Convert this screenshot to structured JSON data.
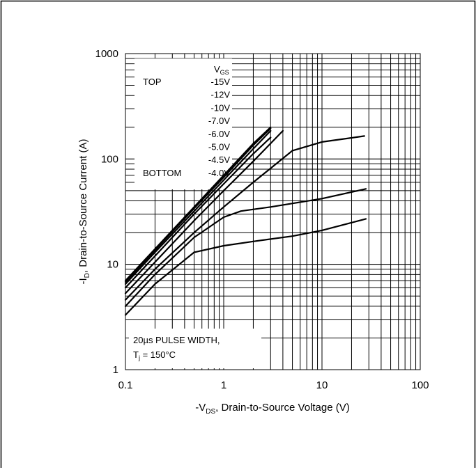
{
  "chart_data": {
    "type": "line",
    "x_scale": "log",
    "y_scale": "log",
    "xlim": [
      0.1,
      100
    ],
    "ylim": [
      1,
      1000
    ],
    "grid": true,
    "xlabel": {
      "prefix": "-V",
      "subscript": "DS",
      "suffix": ", Drain-to-Source Voltage (V)"
    },
    "ylabel": {
      "prefix": "-I",
      "subscript": "D",
      "suffix": ", Drain-to-Source Current (A)"
    },
    "x_ticks": [
      {
        "value": 0.1,
        "label": "0.1"
      },
      {
        "value": 1,
        "label": "1"
      },
      {
        "value": 10,
        "label": "10"
      },
      {
        "value": 100,
        "label": "100"
      }
    ],
    "y_ticks": [
      {
        "value": 1,
        "label": "1"
      },
      {
        "value": 10,
        "label": "10"
      },
      {
        "value": 100,
        "label": "100"
      },
      {
        "value": 1000,
        "label": "1000"
      }
    ],
    "legend": {
      "placement": "top-left",
      "header": {
        "prefix": "V",
        "subscript": "GS"
      },
      "top_label": "TOP",
      "bottom_label": "BOTTOM",
      "entries": [
        "-15V",
        "-12V",
        "-10V",
        "-7.0V",
        "-6.0V",
        "-5.0V",
        "-4.5V",
        "-4.0V"
      ]
    },
    "annotation": {
      "line1": "20µs PULSE WIDTH,",
      "line2_prefix": "T",
      "line2_subscript": "j",
      "line2_suffix": " = 150°C"
    },
    "series": [
      {
        "name": "-15V",
        "x": [
          0.1,
          0.2,
          0.5,
          1,
          2,
          3
        ],
        "y": [
          7.0,
          14.0,
          35.0,
          70.0,
          140.0,
          200.0
        ]
      },
      {
        "name": "-12V",
        "x": [
          0.1,
          0.2,
          0.5,
          1,
          2,
          3
        ],
        "y": [
          6.8,
          13.6,
          34.0,
          67.0,
          135.0,
          195.0
        ]
      },
      {
        "name": "-10V",
        "x": [
          0.1,
          0.2,
          0.5,
          1,
          2,
          3
        ],
        "y": [
          6.5,
          13.0,
          32.0,
          63.0,
          125.0,
          185.0
        ]
      },
      {
        "name": "-7.0V",
        "x": [
          0.1,
          0.2,
          0.5,
          1,
          2,
          3
        ],
        "y": [
          6.0,
          12.0,
          30.0,
          58.0,
          112.0,
          160.0
        ]
      },
      {
        "name": "-6.0V",
        "x": [
          0.1,
          0.2,
          0.5,
          1,
          2,
          4
        ],
        "y": [
          5.3,
          10.5,
          26.0,
          50.0,
          95.0,
          185.0
        ]
      },
      {
        "name": "-5.0V",
        "x": [
          0.1,
          0.2,
          0.5,
          1,
          2,
          5,
          10,
          27
        ],
        "y": [
          4.6,
          9.0,
          20.0,
          35.0,
          60.0,
          120.0,
          145.0,
          165.0
        ]
      },
      {
        "name": "-4.5V",
        "x": [
          0.1,
          0.2,
          0.5,
          1,
          1.5,
          3,
          10,
          28
        ],
        "y": [
          4.0,
          8.0,
          18.0,
          28.0,
          32.0,
          35.0,
          42.0,
          52.0
        ]
      },
      {
        "name": "-4.0V",
        "x": [
          0.1,
          0.2,
          0.5,
          1,
          2,
          5,
          10,
          28
        ],
        "y": [
          3.3,
          6.5,
          13.0,
          15.0,
          16.5,
          18.5,
          21.0,
          27.0
        ]
      }
    ]
  }
}
